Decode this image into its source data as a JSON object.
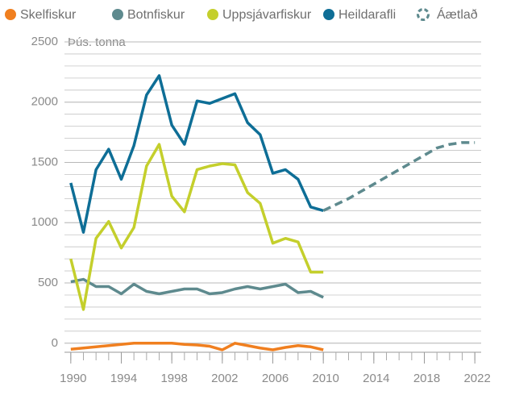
{
  "chart_data": {
    "type": "line",
    "y_axis_label": "Þús. tonna",
    "x": [
      1990,
      1991,
      1992,
      1993,
      1994,
      1995,
      1996,
      1997,
      1998,
      1999,
      2000,
      2001,
      2002,
      2003,
      2004,
      2005,
      2006,
      2007,
      2008,
      2009,
      2010,
      2011,
      2012,
      2013,
      2014,
      2015,
      2016,
      2017,
      2018,
      2019,
      2020,
      2021,
      2022
    ],
    "series": [
      {
        "name": "Skelfiskur",
        "color": "#f07f1f",
        "dashed": false,
        "values": [
          -50,
          -40,
          -30,
          -20,
          -10,
          0,
          0,
          0,
          0,
          -10,
          -15,
          -25,
          -55,
          0,
          -20,
          -40,
          -55,
          -35,
          -20,
          -30,
          -55,
          null,
          null,
          null,
          null,
          null,
          null,
          null,
          null,
          null,
          null,
          null,
          null
        ]
      },
      {
        "name": "Botnfiskur",
        "color": "#5e8a8e",
        "dashed": false,
        "values": [
          510,
          530,
          470,
          470,
          410,
          490,
          430,
          410,
          430,
          450,
          450,
          410,
          420,
          450,
          470,
          450,
          470,
          490,
          420,
          430,
          380,
          null,
          null,
          null,
          null,
          null,
          null,
          null,
          null,
          null,
          null,
          null,
          null
        ]
      },
      {
        "name": "Uppsjávarfiskur",
        "color": "#c4cf2c",
        "dashed": false,
        "values": [
          700,
          280,
          870,
          1010,
          790,
          960,
          1470,
          1650,
          1220,
          1090,
          1440,
          1470,
          1490,
          1480,
          1250,
          1160,
          830,
          870,
          840,
          590,
          590,
          null,
          null,
          null,
          null,
          null,
          null,
          null,
          null,
          null,
          null,
          null,
          null
        ]
      },
      {
        "name": "Heildarafli",
        "color": "#0e6e96",
        "dashed": false,
        "values": [
          1330,
          920,
          1440,
          1610,
          1360,
          1640,
          2060,
          2220,
          1810,
          1650,
          2010,
          1990,
          2030,
          2070,
          1830,
          1730,
          1410,
          1440,
          1360,
          1130,
          1100,
          null,
          null,
          null,
          null,
          null,
          null,
          null,
          null,
          null,
          null,
          null,
          null
        ]
      },
      {
        "name": "Áætlað",
        "color": "#5e8a8e",
        "dashed": true,
        "values": [
          null,
          null,
          null,
          null,
          null,
          null,
          null,
          null,
          null,
          null,
          null,
          null,
          null,
          null,
          null,
          null,
          null,
          null,
          null,
          null,
          1100,
          1150,
          1200,
          1260,
          1320,
          1380,
          1440,
          1500,
          1560,
          1620,
          1650,
          1665,
          1665
        ]
      }
    ],
    "xlim": [
      1989.5,
      2022.5
    ],
    "xticks": [
      1990,
      1994,
      1998,
      2002,
      2006,
      2010,
      2014,
      2018,
      2022
    ],
    "x_minor_step": 1,
    "ylim": [
      -75,
      2500
    ],
    "yticks": [
      0,
      500,
      1000,
      1500,
      2000,
      2500
    ],
    "y_grid_step": 100,
    "grid": true,
    "legend": "top"
  }
}
